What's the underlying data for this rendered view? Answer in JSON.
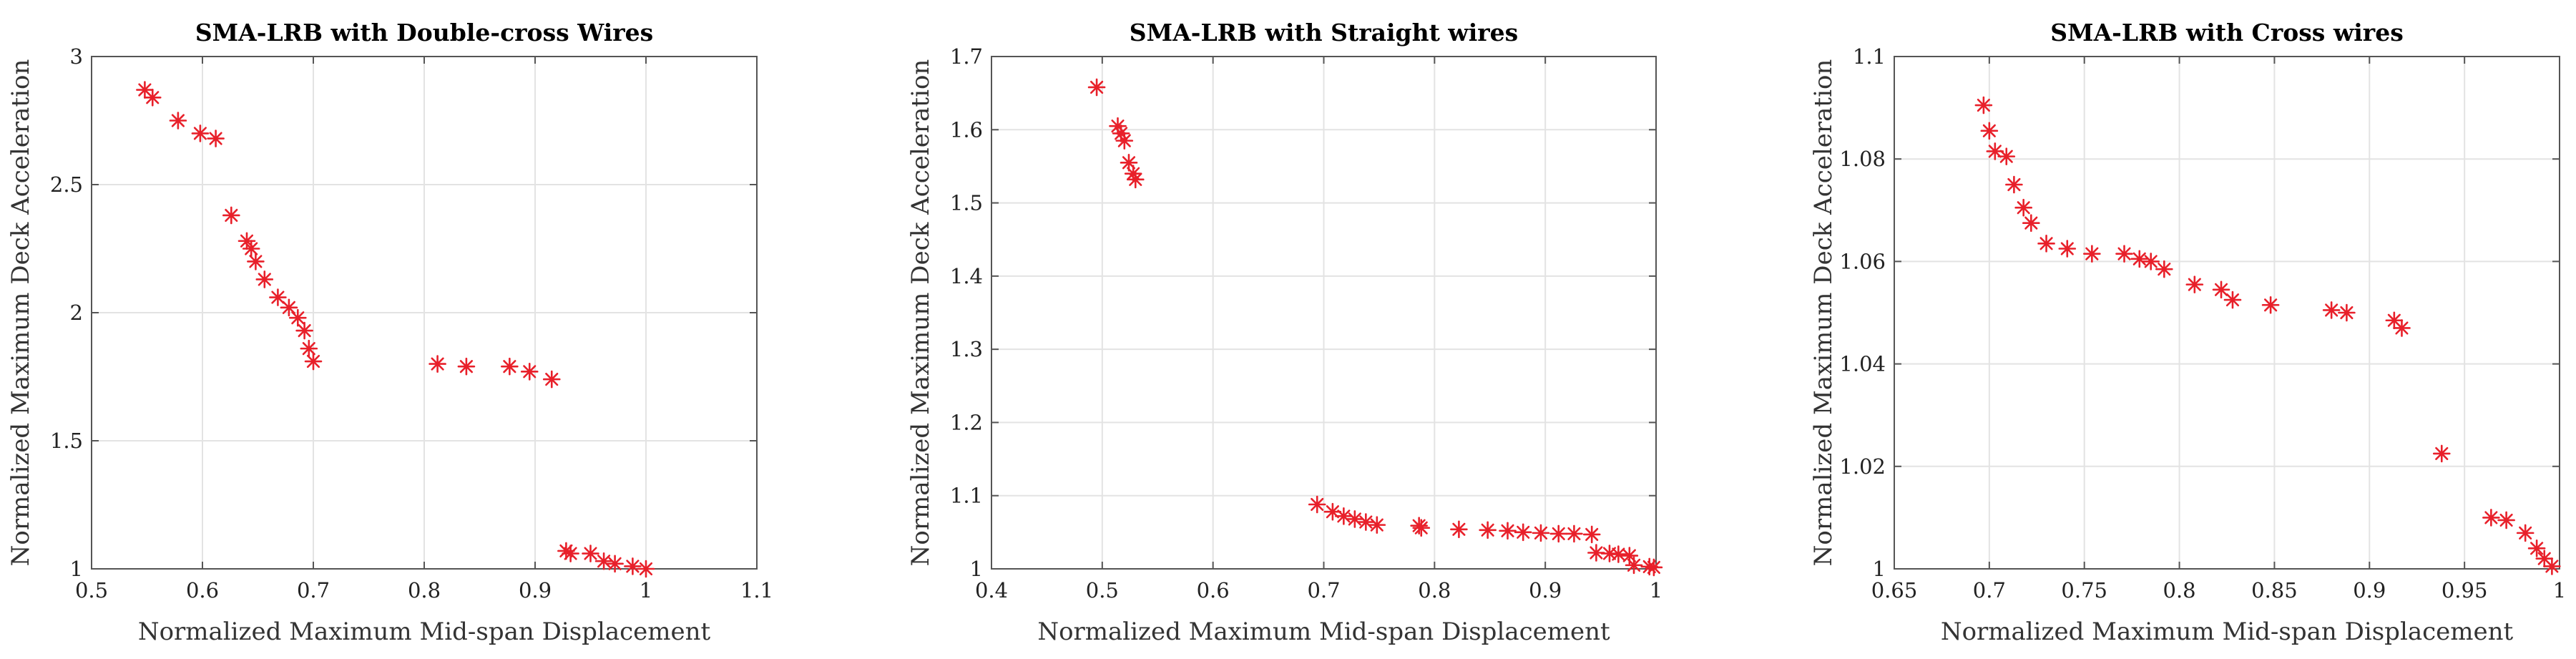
{
  "chart_data": [
    {
      "type": "scatter",
      "title": "SMA-LRB with Double-cross Wires",
      "xlabel": "Normalized Maximum Mid-span Displacement",
      "ylabel": "Normalized Maximum Deck Acceleration",
      "xlim": [
        0.5,
        1.1
      ],
      "ylim": [
        1,
        3
      ],
      "xticks": [
        "0.5",
        "0.6",
        "0.7",
        "0.8",
        "0.9",
        "1",
        "1.1"
      ],
      "yticks": [
        "1",
        "1.5",
        "2",
        "2.5",
        "3"
      ],
      "grid": true,
      "marker_color": "#e8202a",
      "x": [
        0.548,
        0.555,
        0.578,
        0.598,
        0.612,
        0.626,
        0.64,
        0.644,
        0.648,
        0.656,
        0.668,
        0.678,
        0.686,
        0.692,
        0.696,
        0.7,
        0.812,
        0.838,
        0.877,
        0.895,
        0.915,
        0.928,
        0.932,
        0.95,
        0.962,
        0.972,
        0.988,
        1.0
      ],
      "y": [
        2.87,
        2.84,
        2.75,
        2.7,
        2.68,
        2.38,
        2.28,
        2.25,
        2.2,
        2.13,
        2.06,
        2.02,
        1.98,
        1.93,
        1.86,
        1.81,
        1.8,
        1.79,
        1.79,
        1.77,
        1.74,
        1.07,
        1.06,
        1.06,
        1.03,
        1.02,
        1.01,
        1.0
      ]
    },
    {
      "type": "scatter",
      "title": "SMA-LRB with Straight wires",
      "xlabel": "Normalized Maximum Mid-span Displacement",
      "ylabel": "Normalized Maximum Deck Acceleration",
      "xlim": [
        0.4,
        1.0
      ],
      "ylim": [
        1,
        1.7
      ],
      "xticks": [
        "0.4",
        "0.5",
        "0.6",
        "0.7",
        "0.8",
        "0.9",
        "1"
      ],
      "yticks": [
        "1",
        "1.1",
        "1.2",
        "1.3",
        "1.4",
        "1.5",
        "1.6",
        "1.7"
      ],
      "grid": true,
      "marker_color": "#e8202a",
      "x": [
        0.495,
        0.514,
        0.517,
        0.52,
        0.524,
        0.528,
        0.53,
        0.694,
        0.708,
        0.718,
        0.728,
        0.738,
        0.748,
        0.786,
        0.788,
        0.822,
        0.848,
        0.866,
        0.88,
        0.896,
        0.912,
        0.926,
        0.942,
        0.946,
        0.958,
        0.966,
        0.976,
        0.98,
        0.994,
        0.998
      ],
      "y": [
        1.658,
        1.605,
        1.595,
        1.585,
        1.555,
        1.54,
        1.532,
        1.088,
        1.078,
        1.072,
        1.068,
        1.064,
        1.06,
        1.059,
        1.056,
        1.054,
        1.053,
        1.052,
        1.05,
        1.049,
        1.048,
        1.048,
        1.047,
        1.022,
        1.021,
        1.02,
        1.018,
        1.005,
        1.003,
        1.002
      ]
    },
    {
      "type": "scatter",
      "title": "SMA-LRB with Cross wires",
      "xlabel": "Normalized Maximum Mid-span Displacement",
      "ylabel": "Normalized Maximum Deck Acceleration",
      "xlim": [
        0.65,
        1.0
      ],
      "ylim": [
        1,
        1.1
      ],
      "xticks": [
        "0.65",
        "0.7",
        "0.75",
        "0.8",
        "0.85",
        "0.9",
        "0.95",
        "1"
      ],
      "yticks": [
        "1",
        "1.02",
        "1.04",
        "1.06",
        "1.08",
        "1.1"
      ],
      "grid": true,
      "marker_color": "#e8202a",
      "x": [
        0.697,
        0.7,
        0.703,
        0.709,
        0.713,
        0.718,
        0.722,
        0.73,
        0.741,
        0.754,
        0.771,
        0.779,
        0.785,
        0.792,
        0.808,
        0.822,
        0.828,
        0.848,
        0.88,
        0.888,
        0.913,
        0.917,
        0.938,
        0.964,
        0.972,
        0.982,
        0.988,
        0.992,
        0.996
      ],
      "y": [
        1.0905,
        1.0855,
        1.0815,
        1.0805,
        1.075,
        1.0705,
        1.0675,
        1.0635,
        1.0625,
        1.0615,
        1.0615,
        1.0605,
        1.06,
        1.0585,
        1.0555,
        1.0545,
        1.0525,
        1.0515,
        1.0505,
        1.05,
        1.0485,
        1.047,
        1.0225,
        1.01,
        1.0095,
        1.007,
        1.004,
        1.002,
        1.0005
      ]
    }
  ]
}
